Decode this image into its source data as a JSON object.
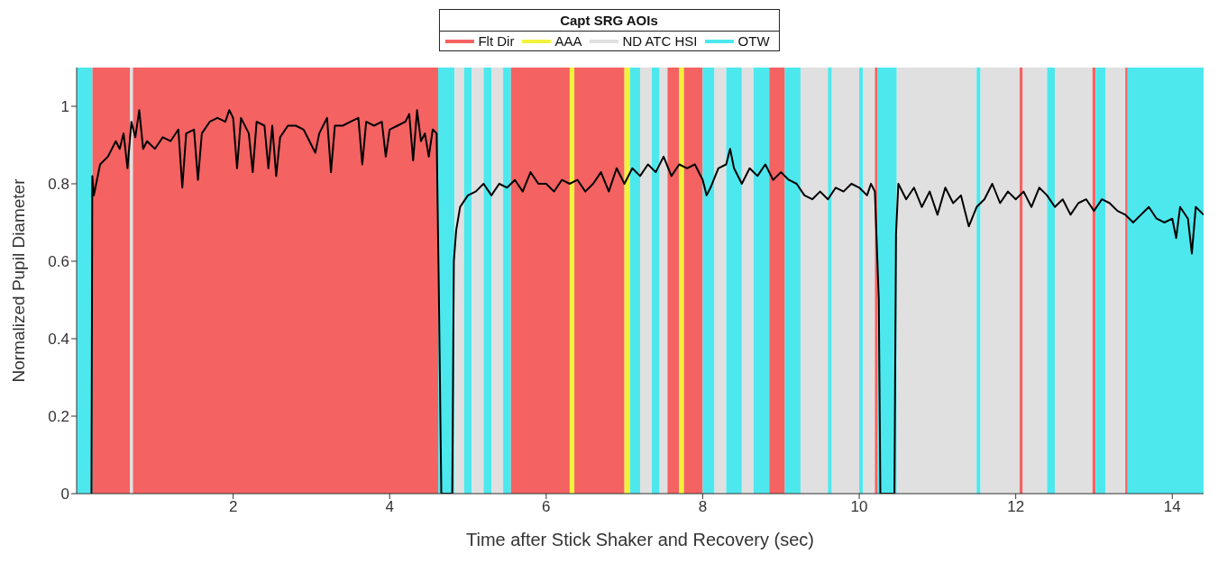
{
  "chart_data": {
    "type": "line",
    "xlabel": "Time after Stick Shaker and Recovery (sec)",
    "ylabel": "Normalized Pupil Diameter",
    "legend_title": "Capt SRG AOIs",
    "legend": "top",
    "grid": false,
    "marker": "none",
    "line_style": "solid",
    "xlim": [
      0,
      14.4
    ],
    "xticks": [
      2,
      4,
      6,
      8,
      10,
      12,
      14
    ],
    "ylim": [
      0,
      1.1
    ],
    "yticks": [
      0,
      0.2,
      0.4,
      0.6,
      0.8,
      1
    ],
    "series": [
      {
        "color": "#000000",
        "x": [
          0.19,
          0.2,
          0.22,
          0.3,
          0.4,
          0.5,
          0.55,
          0.6,
          0.65,
          0.7,
          0.75,
          0.8,
          0.85,
          0.9,
          1.0,
          1.1,
          1.2,
          1.3,
          1.35,
          1.4,
          1.5,
          1.55,
          1.6,
          1.7,
          1.8,
          1.9,
          1.95,
          2.0,
          2.05,
          2.1,
          2.2,
          2.25,
          2.3,
          2.4,
          2.45,
          2.5,
          2.55,
          2.6,
          2.7,
          2.8,
          2.9,
          3.0,
          3.05,
          3.1,
          3.2,
          3.25,
          3.3,
          3.4,
          3.5,
          3.6,
          3.65,
          3.7,
          3.8,
          3.9,
          3.95,
          4.0,
          4.1,
          4.2,
          4.25,
          4.3,
          4.35,
          4.4,
          4.45,
          4.5,
          4.55,
          4.6,
          4.63,
          4.66,
          4.8,
          4.82,
          4.85,
          4.9,
          5.0,
          5.1,
          5.2,
          5.3,
          5.4,
          5.5,
          5.6,
          5.7,
          5.8,
          5.9,
          6.0,
          6.1,
          6.2,
          6.3,
          6.4,
          6.5,
          6.6,
          6.7,
          6.8,
          6.9,
          7.0,
          7.1,
          7.2,
          7.3,
          7.4,
          7.5,
          7.6,
          7.7,
          7.8,
          7.9,
          8.0,
          8.05,
          8.1,
          8.2,
          8.3,
          8.35,
          8.4,
          8.5,
          8.6,
          8.7,
          8.8,
          8.9,
          9.0,
          9.1,
          9.2,
          9.3,
          9.4,
          9.5,
          9.6,
          9.7,
          9.8,
          9.9,
          10.0,
          10.1,
          10.15,
          10.2,
          10.25,
          10.27,
          10.45,
          10.47,
          10.5,
          10.6,
          10.7,
          10.8,
          10.9,
          11.0,
          11.1,
          11.2,
          11.3,
          11.4,
          11.5,
          11.6,
          11.7,
          11.8,
          11.9,
          12.0,
          12.1,
          12.2,
          12.3,
          12.4,
          12.5,
          12.6,
          12.7,
          12.8,
          12.9,
          13.0,
          13.1,
          13.2,
          13.3,
          13.4,
          13.5,
          13.6,
          13.7,
          13.8,
          13.9,
          14.0,
          14.05,
          14.1,
          14.2,
          14.25,
          14.3,
          14.4
        ],
        "values": [
          0,
          0.82,
          0.77,
          0.85,
          0.87,
          0.91,
          0.89,
          0.93,
          0.84,
          0.96,
          0.92,
          0.99,
          0.89,
          0.91,
          0.89,
          0.92,
          0.91,
          0.94,
          0.79,
          0.93,
          0.94,
          0.81,
          0.93,
          0.96,
          0.97,
          0.96,
          0.99,
          0.97,
          0.84,
          0.97,
          0.93,
          0.83,
          0.96,
          0.95,
          0.84,
          0.95,
          0.82,
          0.92,
          0.95,
          0.95,
          0.94,
          0.9,
          0.88,
          0.93,
          0.97,
          0.83,
          0.95,
          0.95,
          0.96,
          0.97,
          0.85,
          0.96,
          0.95,
          0.96,
          0.87,
          0.94,
          0.95,
          0.96,
          0.98,
          0.86,
          0.99,
          0.91,
          0.93,
          0.87,
          0.94,
          0.93,
          0.5,
          0,
          0,
          0.6,
          0.68,
          0.74,
          0.77,
          0.78,
          0.8,
          0.77,
          0.8,
          0.79,
          0.81,
          0.78,
          0.83,
          0.8,
          0.8,
          0.78,
          0.81,
          0.8,
          0.81,
          0.78,
          0.8,
          0.83,
          0.78,
          0.84,
          0.8,
          0.84,
          0.82,
          0.85,
          0.83,
          0.87,
          0.82,
          0.85,
          0.84,
          0.85,
          0.81,
          0.77,
          0.79,
          0.84,
          0.85,
          0.89,
          0.84,
          0.8,
          0.84,
          0.82,
          0.85,
          0.81,
          0.83,
          0.81,
          0.8,
          0.77,
          0.76,
          0.78,
          0.76,
          0.79,
          0.78,
          0.8,
          0.79,
          0.77,
          0.8,
          0.78,
          0.5,
          0,
          0,
          0.67,
          0.8,
          0.76,
          0.79,
          0.74,
          0.78,
          0.72,
          0.79,
          0.75,
          0.77,
          0.69,
          0.74,
          0.76,
          0.8,
          0.75,
          0.78,
          0.76,
          0.78,
          0.74,
          0.79,
          0.77,
          0.74,
          0.76,
          0.72,
          0.75,
          0.76,
          0.73,
          0.76,
          0.75,
          0.73,
          0.72,
          0.7,
          0.72,
          0.74,
          0.71,
          0.7,
          0.71,
          0.66,
          0.74,
          0.71,
          0.62,
          0.74,
          0.72
        ]
      }
    ],
    "bands": [
      {
        "axis": "x",
        "from": 0.2,
        "to": 0.68,
        "label": "Flt Dir",
        "color": "#f46262"
      },
      {
        "axis": "x",
        "from": 6.3,
        "to": 6.36,
        "label": "AAA",
        "color": "#f2f23a"
      },
      {
        "axis": "x",
        "from": 0.68,
        "to": 0.72,
        "label": "ND ATC HSI",
        "color": "#e0e0e0"
      },
      {
        "axis": "x",
        "from": 0,
        "to": 0.2,
        "label": "OTW",
        "color": "#4de8ee"
      },
      {
        "axis": "x",
        "from": 0.72,
        "to": 4.62,
        "color": "#f46262"
      },
      {
        "axis": "x",
        "from": 4.62,
        "to": 4.83,
        "color": "#4de8ee"
      },
      {
        "axis": "x",
        "from": 4.83,
        "to": 4.95,
        "color": "#e0e0e0"
      },
      {
        "axis": "x",
        "from": 4.95,
        "to": 5.05,
        "color": "#4de8ee"
      },
      {
        "axis": "x",
        "from": 5.05,
        "to": 5.2,
        "color": "#e0e0e0"
      },
      {
        "axis": "x",
        "from": 5.2,
        "to": 5.3,
        "color": "#4de8ee"
      },
      {
        "axis": "x",
        "from": 5.3,
        "to": 5.45,
        "color": "#e0e0e0"
      },
      {
        "axis": "x",
        "from": 5.45,
        "to": 5.55,
        "color": "#4de8ee"
      },
      {
        "axis": "x",
        "from": 5.55,
        "to": 6.3,
        "color": "#f46262"
      },
      {
        "axis": "x",
        "from": 6.36,
        "to": 7.0,
        "color": "#f46262"
      },
      {
        "axis": "x",
        "from": 7.0,
        "to": 7.07,
        "color": "#f2f23a"
      },
      {
        "axis": "x",
        "from": 7.07,
        "to": 7.2,
        "color": "#4de8ee"
      },
      {
        "axis": "x",
        "from": 7.2,
        "to": 7.35,
        "color": "#e0e0e0"
      },
      {
        "axis": "x",
        "from": 7.35,
        "to": 7.45,
        "color": "#4de8ee"
      },
      {
        "axis": "x",
        "from": 7.45,
        "to": 7.55,
        "color": "#e0e0e0"
      },
      {
        "axis": "x",
        "from": 7.55,
        "to": 7.7,
        "color": "#f46262"
      },
      {
        "axis": "x",
        "from": 7.7,
        "to": 7.76,
        "color": "#f2f23a"
      },
      {
        "axis": "x",
        "from": 7.76,
        "to": 8.0,
        "color": "#f46262"
      },
      {
        "axis": "x",
        "from": 8.0,
        "to": 8.15,
        "color": "#4de8ee"
      },
      {
        "axis": "x",
        "from": 8.15,
        "to": 8.3,
        "color": "#e0e0e0"
      },
      {
        "axis": "x",
        "from": 8.3,
        "to": 8.5,
        "color": "#4de8ee"
      },
      {
        "axis": "x",
        "from": 8.5,
        "to": 8.65,
        "color": "#e0e0e0"
      },
      {
        "axis": "x",
        "from": 8.65,
        "to": 8.85,
        "color": "#4de8ee"
      },
      {
        "axis": "x",
        "from": 8.85,
        "to": 9.05,
        "color": "#f46262"
      },
      {
        "axis": "x",
        "from": 9.05,
        "to": 9.25,
        "color": "#4de8ee"
      },
      {
        "axis": "x",
        "from": 9.25,
        "to": 9.6,
        "color": "#e0e0e0"
      },
      {
        "axis": "x",
        "from": 9.6,
        "to": 9.65,
        "color": "#4de8ee"
      },
      {
        "axis": "x",
        "from": 9.65,
        "to": 10.0,
        "color": "#e0e0e0"
      },
      {
        "axis": "x",
        "from": 10.0,
        "to": 10.05,
        "color": "#4de8ee"
      },
      {
        "axis": "x",
        "from": 10.05,
        "to": 10.2,
        "color": "#e0e0e0"
      },
      {
        "axis": "x",
        "from": 10.2,
        "to": 10.23,
        "color": "#f46262"
      },
      {
        "axis": "x",
        "from": 10.23,
        "to": 10.48,
        "color": "#4de8ee"
      },
      {
        "axis": "x",
        "from": 10.48,
        "to": 11.5,
        "color": "#e0e0e0"
      },
      {
        "axis": "x",
        "from": 11.5,
        "to": 11.55,
        "color": "#4de8ee"
      },
      {
        "axis": "x",
        "from": 11.55,
        "to": 12.05,
        "color": "#e0e0e0"
      },
      {
        "axis": "x",
        "from": 12.05,
        "to": 12.09,
        "color": "#f46262"
      },
      {
        "axis": "x",
        "from": 12.09,
        "to": 12.4,
        "color": "#e0e0e0"
      },
      {
        "axis": "x",
        "from": 12.4,
        "to": 12.5,
        "color": "#4de8ee"
      },
      {
        "axis": "x",
        "from": 12.5,
        "to": 12.98,
        "color": "#e0e0e0"
      },
      {
        "axis": "x",
        "from": 12.98,
        "to": 13.02,
        "color": "#f46262"
      },
      {
        "axis": "x",
        "from": 13.02,
        "to": 13.15,
        "color": "#4de8ee"
      },
      {
        "axis": "x",
        "from": 13.15,
        "to": 13.4,
        "color": "#e0e0e0"
      },
      {
        "axis": "x",
        "from": 13.4,
        "to": 13.43,
        "color": "#f46262"
      },
      {
        "axis": "x",
        "from": 13.43,
        "to": 14.4,
        "color": "#4de8ee"
      }
    ]
  }
}
